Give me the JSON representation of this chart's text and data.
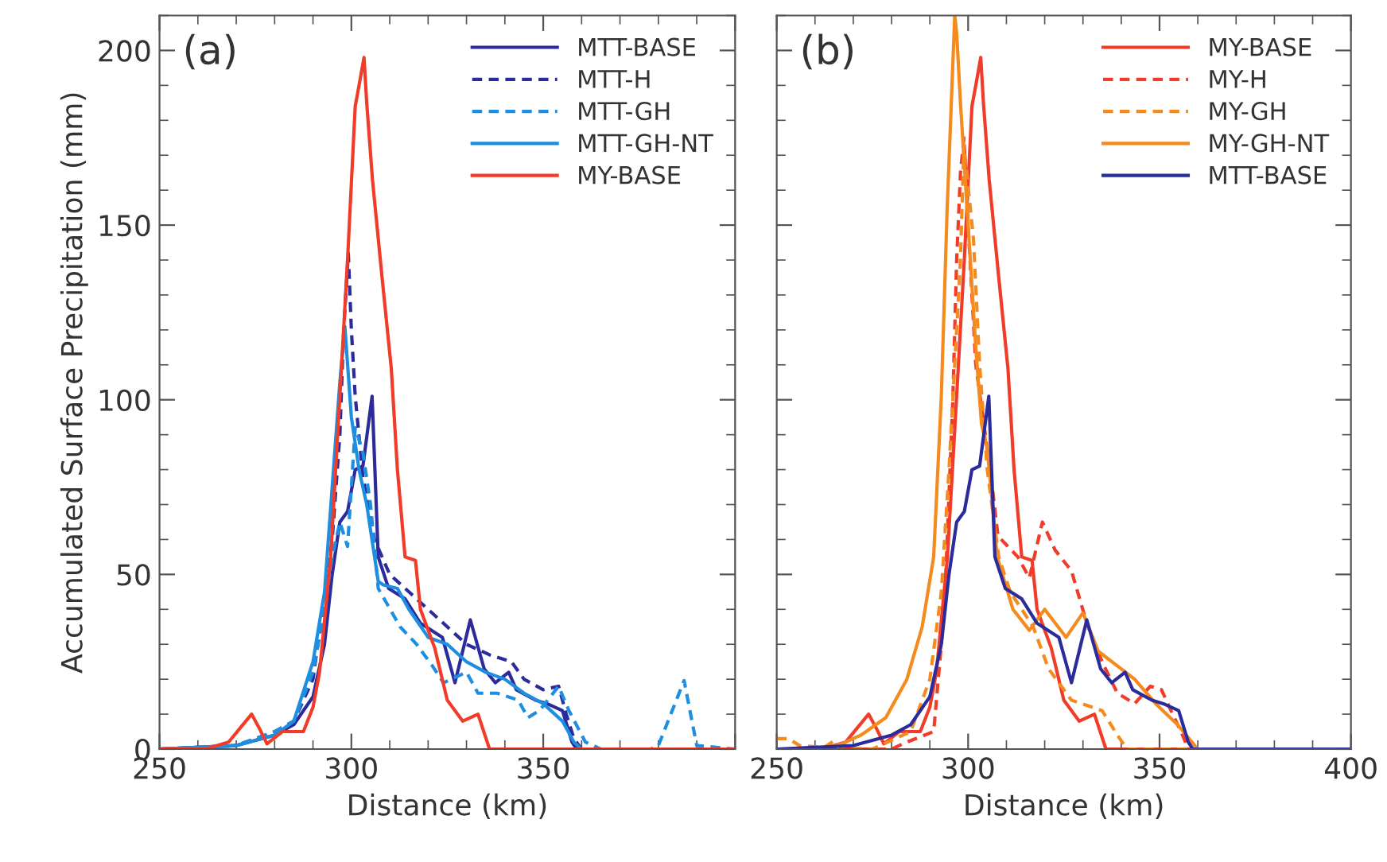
{
  "chart_data": [
    {
      "type": "line",
      "title": "(a)",
      "xlabel": "Distance (km)",
      "ylabel": "Accumulated Surface Precipitation (mm)",
      "xlim": [
        250,
        400
      ],
      "xticks": [
        250,
        300,
        350,
        {
          "value": 400,
          "label": null
        }
      ],
      "ylim": [
        0,
        210
      ],
      "yticks": [
        0,
        50,
        100,
        150,
        200
      ],
      "legend": "top right",
      "series": [
        {
          "name": "MTT-BASE",
          "color": "#2b2b9b",
          "line_style": "solid",
          "x": [
            250,
            260,
            270,
            280,
            285,
            290,
            293,
            295,
            297,
            299,
            301,
            303,
            305.4,
            307,
            309.7,
            314,
            318,
            323.7,
            327,
            331,
            334.6,
            337.5,
            341,
            343,
            348,
            351,
            355,
            357.5,
            358.7,
            400
          ],
          "values": [
            0,
            0.5,
            1,
            4,
            7,
            15,
            30,
            50,
            65,
            68,
            80,
            81,
            101,
            55,
            46,
            43,
            36,
            32,
            19,
            37,
            23,
            19,
            22,
            17,
            14,
            13,
            11,
            2,
            0,
            0
          ]
        },
        {
          "name": "MTT-H",
          "color": "#2b2b9b",
          "line_style": "dashed",
          "x": [
            250,
            260,
            270,
            280,
            285,
            290,
            295,
            297,
            298,
            299.2,
            300,
            301,
            303,
            306,
            310,
            315,
            320,
            330,
            336,
            341.7,
            345,
            350,
            354,
            356,
            358,
            360,
            400
          ],
          "values": [
            0,
            0.5,
            1,
            5,
            8,
            20,
            60,
            90,
            120,
            142,
            120,
            101,
            78,
            60,
            50,
            45,
            40,
            30,
            27,
            25,
            20,
            17,
            18,
            10,
            3,
            0,
            0
          ]
        },
        {
          "name": "MTT-GH",
          "color": "#1e8fe0",
          "line_style": "dashed",
          "x": [
            250,
            260,
            270,
            280,
            285,
            290,
            293,
            295,
            297,
            299,
            301,
            303,
            305,
            307,
            312.7,
            317,
            321,
            324,
            330,
            333,
            338,
            343.5,
            346,
            349,
            354,
            356.7,
            361,
            365,
            378,
            380,
            386.7,
            390,
            400
          ],
          "values": [
            0,
            0.5,
            1,
            5,
            8,
            22,
            40,
            55,
            65,
            58,
            92,
            85,
            70,
            46,
            35,
            30,
            24,
            19,
            22,
            16,
            16,
            14,
            9,
            11,
            18,
            11,
            2,
            0,
            0,
            1,
            19.6,
            1,
            0
          ]
        },
        {
          "name": "MTT-GH-NT",
          "color": "#1e8fe0",
          "line_style": "solid",
          "x": [
            250,
            260,
            270,
            280,
            285,
            290,
            293,
            295,
            297,
            298.3,
            300,
            302,
            304,
            307,
            308.3,
            312,
            315,
            320,
            325,
            330,
            335,
            340,
            345,
            350,
            355,
            358,
            360,
            400
          ],
          "values": [
            0,
            0.5,
            1,
            4,
            8,
            25,
            45,
            75,
            105,
            121,
            95,
            80,
            70,
            48,
            47,
            46,
            40,
            32,
            30,
            25,
            22,
            20,
            16,
            13,
            8,
            2,
            0,
            0
          ]
        },
        {
          "name": "MY-BASE",
          "color": "#f03c28",
          "line_style": "solid",
          "x": [
            250,
            262,
            265,
            268,
            271,
            274,
            276,
            278,
            282,
            287.5,
            290,
            291.7,
            294.6,
            297,
            299,
            301,
            302,
            303.3,
            304,
            305.5,
            308,
            310.4,
            312,
            314,
            316.7,
            318,
            321.7,
            325,
            329,
            333,
            336,
            400
          ],
          "values": [
            0,
            0,
            1,
            2,
            6,
            10,
            6,
            1.5,
            5,
            5,
            12,
            22,
            55,
            101,
            140,
            184,
            190,
            198,
            185,
            163,
            135,
            109,
            80,
            55,
            54,
            40,
            29,
            14,
            8,
            10,
            0,
            0
          ]
        }
      ]
    },
    {
      "type": "line",
      "title": "(b)",
      "xlabel": "Distance (km)",
      "xlim": [
        250,
        400
      ],
      "xticks": [
        250,
        300,
        350,
        400
      ],
      "ylim": [
        0,
        210
      ],
      "yticks": [
        0,
        50,
        100,
        150,
        200
      ],
      "legend": "top right",
      "tick_labels": "x",
      "series": [
        {
          "name": "MY-BASE",
          "color": "#f03c28",
          "line_style": "solid",
          "x": [
            250,
            262,
            265,
            268,
            271,
            274,
            276,
            278,
            282,
            287.5,
            290,
            291.7,
            294.6,
            297,
            299,
            301,
            302,
            303.3,
            304,
            305.5,
            308,
            310.4,
            312,
            314,
            316.7,
            318,
            321.7,
            325,
            329,
            333,
            336,
            400
          ],
          "values": [
            0,
            0,
            1,
            2,
            6,
            10,
            6,
            1.5,
            5,
            5,
            12,
            22,
            55,
            101,
            140,
            184,
            190,
            198,
            185,
            163,
            135,
            109,
            80,
            55,
            54,
            40,
            29,
            14,
            8,
            10,
            0,
            0
          ]
        },
        {
          "name": "MY-H",
          "color": "#f03c28",
          "line_style": "dashed",
          "x": [
            250,
            280,
            284,
            291,
            293.8,
            296,
            297,
            298,
            298.9,
            300,
            302,
            306,
            307.8,
            313,
            316,
            319.4,
            322.7,
            327,
            331,
            335,
            339,
            343.5,
            347.6,
            350.5,
            353,
            356,
            357.5,
            400
          ],
          "values": [
            0,
            0,
            2,
            5,
            40,
            100,
            140,
            165,
            175,
            150,
            110,
            78,
            61,
            55,
            49,
            65,
            57,
            51,
            36,
            25,
            16,
            13,
            18,
            17,
            11,
            4,
            0,
            0
          ]
        },
        {
          "name": "MY-GH",
          "color": "#f58a1e",
          "line_style": "dashed",
          "x": [
            250,
            253,
            256,
            262.4,
            265.2,
            266.6,
            275,
            285,
            290,
            293,
            295,
            297,
            298,
            298.9,
            301.4,
            303,
            305,
            308,
            311,
            314,
            317,
            321,
            327,
            335,
            339,
            341.5,
            400
          ],
          "values": [
            3,
            3,
            1,
            0.5,
            2.5,
            0.5,
            0,
            5,
            20,
            45,
            80,
            120,
            140,
            173,
            146,
            110,
            80,
            55,
            45,
            40,
            35,
            23,
            14,
            11,
            4,
            0,
            0
          ]
        },
        {
          "name": "MY-GH-NT",
          "color": "#f58a1e",
          "line_style": "solid",
          "x": [
            250,
            260,
            266,
            272,
            278.5,
            284,
            288,
            291,
            293,
            294.5,
            296.5,
            297,
            298,
            300,
            302,
            303.5,
            305,
            307.6,
            311.7,
            316,
            320,
            325.6,
            330,
            334,
            343.5,
            349,
            354.7,
            360,
            400
          ],
          "values": [
            0,
            0,
            1,
            4,
            9,
            20,
            35,
            55,
            101,
            154,
            210,
            205,
            185,
            150,
            115,
            93,
            86,
            55,
            40,
            34,
            40,
            32,
            39,
            28,
            20,
            13,
            7,
            0,
            0
          ]
        },
        {
          "name": "MTT-BASE",
          "color": "#2b2b9b",
          "line_style": "solid",
          "x": [
            250,
            260,
            270,
            280,
            285,
            290,
            293,
            295,
            297,
            299,
            301,
            303,
            305.4,
            307,
            309.7,
            314,
            318,
            323.7,
            327,
            331,
            334.6,
            337.5,
            341,
            343,
            348,
            351,
            355,
            357.5,
            358.7,
            400
          ],
          "values": [
            0,
            0.5,
            1,
            4,
            7,
            15,
            30,
            50,
            65,
            68,
            80,
            81,
            101,
            55,
            46,
            43,
            36,
            32,
            19,
            37,
            23,
            19,
            22,
            17,
            14,
            13,
            11,
            2,
            0,
            0
          ]
        }
      ]
    }
  ]
}
